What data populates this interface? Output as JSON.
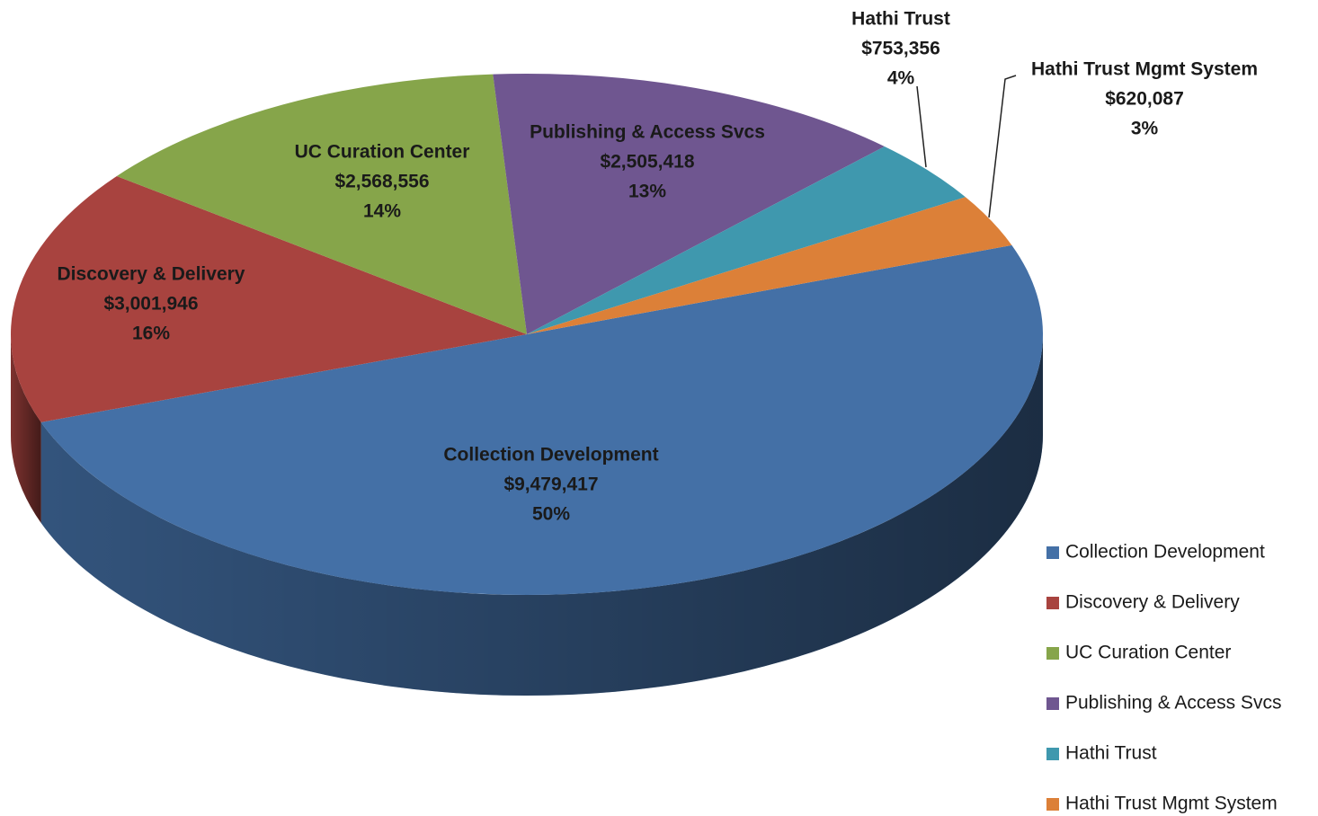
{
  "chart_data": {
    "type": "pie",
    "categories": [
      "Collection Development",
      "Discovery & Delivery",
      "UC Curation Center",
      "Publishing & Access Svcs",
      "Hathi Trust",
      "Hathi Trust Mgmt System"
    ],
    "values": [
      9479417,
      3001946,
      2568556,
      2505418,
      753356,
      620087
    ],
    "value_labels": [
      "$9,479,417",
      "$3,001,946",
      "$2,568,556",
      "$2,505,418",
      "$753,356",
      "$620,087"
    ],
    "percentages": [
      50,
      16,
      14,
      13,
      4,
      3
    ],
    "percentage_labels": [
      "50%",
      "16%",
      "14%",
      "13%",
      "4%",
      "3%"
    ],
    "colors": [
      "#4470a6",
      "#a8433f",
      "#86a54a",
      "#6f5690",
      "#3f98ae",
      "#dc8038"
    ],
    "legend": "right"
  }
}
